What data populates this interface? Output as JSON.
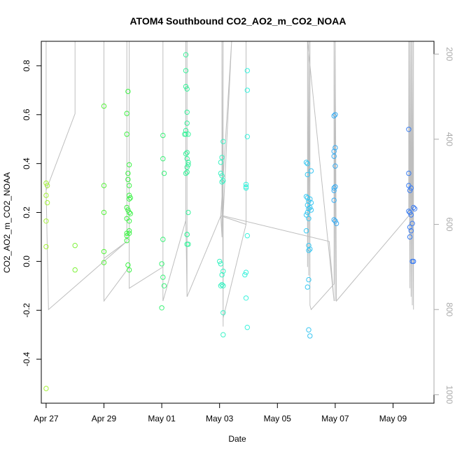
{
  "chart_data": {
    "type": "scatter",
    "title": "ATOM4 Southbound CO2_AO2_m_CO2_NOAA",
    "xlabel": "Date",
    "ylabel": "CO2_AO2_m_CO2_NOAA",
    "xlim": [
      "2016-04-26T20:00",
      "2016-05-10T10:00"
    ],
    "ylim": [
      -0.58,
      0.9
    ],
    "y2lim": [
      1020,
      170
    ],
    "x_ticks": [
      {
        "date": "2016-04-27",
        "label": "Apr 27"
      },
      {
        "date": "2016-04-29",
        "label": "Apr 29"
      },
      {
        "date": "2016-05-01",
        "label": "May 01"
      },
      {
        "date": "2016-05-03",
        "label": "May 03"
      },
      {
        "date": "2016-05-05",
        "label": "May 05"
      },
      {
        "date": "2016-05-07",
        "label": "May 07"
      },
      {
        "date": "2016-05-09",
        "label": "May 09"
      }
    ],
    "y_ticks": [
      -0.4,
      -0.2,
      0.0,
      0.2,
      0.4,
      0.6,
      0.8
    ],
    "y_tick_labels": [
      "-0.4",
      "-0.2",
      "0.0",
      "0.2",
      "0.4",
      "0.6",
      "0.8"
    ],
    "y2_ticks": [
      200,
      400,
      600,
      800,
      1000
    ],
    "y2_tick_labels": [
      "200",
      "400",
      "600",
      "800",
      "1000"
    ],
    "grid": false,
    "legend": "none",
    "colors": {
      "altitude_line": "#bebebe",
      "axis": "#000000",
      "right_axis": "#aaaaaa",
      "point_gradient": [
        "#a6f23a",
        "#3ff23a",
        "#3af2a6",
        "#3af2f2",
        "#3aa6f2",
        "#3a7af2"
      ]
    },
    "points": [
      {
        "x": "2016-04-27T00:00",
        "y": 0.32
      },
      {
        "x": "2016-04-27T00:00",
        "y": 0.27
      },
      {
        "x": "2016-04-27T01:00",
        "y": 0.31
      },
      {
        "x": "2016-04-27T00:00",
        "y": 0.165
      },
      {
        "x": "2016-04-27T01:00",
        "y": 0.24
      },
      {
        "x": "2016-04-27T00:00",
        "y": 0.06
      },
      {
        "x": "2016-04-27T00:00",
        "y": -0.52
      },
      {
        "x": "2016-04-28T00:00",
        "y": 0.065
      },
      {
        "x": "2016-04-28T00:00",
        "y": -0.035
      },
      {
        "x": "2016-04-29T00:00",
        "y": 0.635
      },
      {
        "x": "2016-04-29T00:00",
        "y": 0.31
      },
      {
        "x": "2016-04-29T00:00",
        "y": 0.2
      },
      {
        "x": "2016-04-29T00:00",
        "y": 0.04
      },
      {
        "x": "2016-04-29T00:00",
        "y": -0.005
      },
      {
        "x": "2016-04-29T20:00",
        "y": 0.695
      },
      {
        "x": "2016-04-29T19:00",
        "y": 0.605
      },
      {
        "x": "2016-04-29T19:00",
        "y": 0.52
      },
      {
        "x": "2016-04-29T21:00",
        "y": 0.395
      },
      {
        "x": "2016-04-29T20:00",
        "y": 0.36
      },
      {
        "x": "2016-04-29T20:00",
        "y": 0.335
      },
      {
        "x": "2016-04-29T21:00",
        "y": 0.31
      },
      {
        "x": "2016-04-29T21:00",
        "y": 0.27
      },
      {
        "x": "2016-04-29T22:00",
        "y": 0.26
      },
      {
        "x": "2016-04-29T21:00",
        "y": 0.255
      },
      {
        "x": "2016-04-29T19:00",
        "y": 0.22
      },
      {
        "x": "2016-04-29T20:00",
        "y": 0.21
      },
      {
        "x": "2016-04-29T21:00",
        "y": 0.2
      },
      {
        "x": "2016-04-29T22:00",
        "y": 0.195
      },
      {
        "x": "2016-04-29T19:00",
        "y": 0.175
      },
      {
        "x": "2016-04-29T21:00",
        "y": 0.165
      },
      {
        "x": "2016-04-29T21:00",
        "y": 0.125
      },
      {
        "x": "2016-04-29T21:00",
        "y": 0.115
      },
      {
        "x": "2016-04-29T19:00",
        "y": 0.115
      },
      {
        "x": "2016-04-29T19:00",
        "y": 0.105
      },
      {
        "x": "2016-04-29T19:00",
        "y": 0.085
      },
      {
        "x": "2016-04-29T20:00",
        "y": -0.015
      },
      {
        "x": "2016-04-29T21:00",
        "y": -0.035
      },
      {
        "x": "2016-05-01T01:00",
        "y": 0.515
      },
      {
        "x": "2016-05-01T01:00",
        "y": 0.42
      },
      {
        "x": "2016-05-01T02:00",
        "y": 0.36
      },
      {
        "x": "2016-05-01T01:00",
        "y": 0.09
      },
      {
        "x": "2016-05-01T00:00",
        "y": -0.01
      },
      {
        "x": "2016-05-01T01:00",
        "y": -0.065
      },
      {
        "x": "2016-05-01T02:00",
        "y": -0.1
      },
      {
        "x": "2016-05-01T00:00",
        "y": -0.19
      },
      {
        "x": "2016-05-01T20:00",
        "y": 0.845
      },
      {
        "x": "2016-05-01T20:00",
        "y": 0.78
      },
      {
        "x": "2016-05-01T20:00",
        "y": 0.715
      },
      {
        "x": "2016-05-01T21:00",
        "y": 0.705
      },
      {
        "x": "2016-05-01T21:00",
        "y": 0.61
      },
      {
        "x": "2016-05-01T21:00",
        "y": 0.565
      },
      {
        "x": "2016-05-01T20:00",
        "y": 0.535
      },
      {
        "x": "2016-05-01T19:00",
        "y": 0.52
      },
      {
        "x": "2016-05-01T20:00",
        "y": 0.52
      },
      {
        "x": "2016-05-01T22:00",
        "y": 0.52
      },
      {
        "x": "2016-05-01T20:00",
        "y": 0.44
      },
      {
        "x": "2016-05-01T21:00",
        "y": 0.445
      },
      {
        "x": "2016-05-01T21:00",
        "y": 0.42
      },
      {
        "x": "2016-05-01T22:00",
        "y": 0.405
      },
      {
        "x": "2016-05-01T22:00",
        "y": 0.395
      },
      {
        "x": "2016-05-01T21:00",
        "y": 0.385
      },
      {
        "x": "2016-05-01T21:00",
        "y": 0.365
      },
      {
        "x": "2016-05-01T20:00",
        "y": 0.36
      },
      {
        "x": "2016-05-01T22:00",
        "y": 0.2
      },
      {
        "x": "2016-05-01T21:00",
        "y": 0.11
      },
      {
        "x": "2016-05-01T21:00",
        "y": 0.11
      },
      {
        "x": "2016-05-01T21:00",
        "y": 0.07
      },
      {
        "x": "2016-05-01T22:00",
        "y": 0.07
      },
      {
        "x": "2016-05-03T03:00",
        "y": 0.49
      },
      {
        "x": "2016-05-03T02:00",
        "y": 0.425
      },
      {
        "x": "2016-05-03T01:00",
        "y": 0.405
      },
      {
        "x": "2016-05-03T01:00",
        "y": 0.36
      },
      {
        "x": "2016-05-03T02:00",
        "y": 0.35
      },
      {
        "x": "2016-05-03T03:00",
        "y": 0.33
      },
      {
        "x": "2016-05-03T02:00",
        "y": 0.325
      },
      {
        "x": "2016-05-03T00:00",
        "y": 0.0
      },
      {
        "x": "2016-05-03T01:00",
        "y": -0.01
      },
      {
        "x": "2016-05-03T03:00",
        "y": -0.04
      },
      {
        "x": "2016-05-03T02:00",
        "y": -0.055
      },
      {
        "x": "2016-05-03T02:00",
        "y": -0.095
      },
      {
        "x": "2016-05-03T01:00",
        "y": -0.1
      },
      {
        "x": "2016-05-03T03:00",
        "y": -0.1
      },
      {
        "x": "2016-05-03T03:00",
        "y": -0.21
      },
      {
        "x": "2016-05-03T03:00",
        "y": -0.3
      },
      {
        "x": "2016-05-03T23:00",
        "y": 0.78
      },
      {
        "x": "2016-05-03T23:00",
        "y": 0.7
      },
      {
        "x": "2016-05-03T23:00",
        "y": 0.51
      },
      {
        "x": "2016-05-03T22:00",
        "y": 0.315
      },
      {
        "x": "2016-05-03T22:00",
        "y": 0.305
      },
      {
        "x": "2016-05-03T22:00",
        "y": 0.3
      },
      {
        "x": "2016-05-03T23:00",
        "y": 0.105
      },
      {
        "x": "2016-05-03T22:00",
        "y": -0.045
      },
      {
        "x": "2016-05-03T21:00",
        "y": -0.055
      },
      {
        "x": "2016-05-03T22:00",
        "y": -0.15
      },
      {
        "x": "2016-05-03T23:00",
        "y": -0.27
      },
      {
        "x": "2016-05-06T00:00",
        "y": 0.405
      },
      {
        "x": "2016-05-06T01:00",
        "y": 0.4
      },
      {
        "x": "2016-05-06T04:00",
        "y": 0.37
      },
      {
        "x": "2016-05-06T01:00",
        "y": 0.355
      },
      {
        "x": "2016-05-06T00:00",
        "y": 0.265
      },
      {
        "x": "2016-05-06T01:00",
        "y": 0.26
      },
      {
        "x": "2016-05-06T03:00",
        "y": 0.255
      },
      {
        "x": "2016-05-06T02:00",
        "y": 0.245
      },
      {
        "x": "2016-05-06T04:00",
        "y": 0.24
      },
      {
        "x": "2016-05-06T01:00",
        "y": 0.23
      },
      {
        "x": "2016-05-06T03:00",
        "y": 0.22
      },
      {
        "x": "2016-05-06T02:00",
        "y": 0.215
      },
      {
        "x": "2016-05-06T04:00",
        "y": 0.21
      },
      {
        "x": "2016-05-06T01:00",
        "y": 0.2
      },
      {
        "x": "2016-05-06T00:00",
        "y": 0.19
      },
      {
        "x": "2016-05-06T02:00",
        "y": 0.175
      },
      {
        "x": "2016-05-06T00:00",
        "y": 0.125
      },
      {
        "x": "2016-05-06T02:00",
        "y": 0.065
      },
      {
        "x": "2016-05-06T03:00",
        "y": 0.05
      },
      {
        "x": "2016-05-06T02:00",
        "y": 0.045
      },
      {
        "x": "2016-05-06T02:00",
        "y": -0.075
      },
      {
        "x": "2016-05-06T01:00",
        "y": -0.105
      },
      {
        "x": "2016-05-06T02:00",
        "y": -0.28
      },
      {
        "x": "2016-05-06T03:00",
        "y": -0.305
      },
      {
        "x": "2016-05-06T23:00",
        "y": 0.595
      },
      {
        "x": "2016-05-07T00:00",
        "y": 0.6
      },
      {
        "x": "2016-05-07T00:00",
        "y": 0.465
      },
      {
        "x": "2016-05-06T23:00",
        "y": 0.45
      },
      {
        "x": "2016-05-06T23:00",
        "y": 0.43
      },
      {
        "x": "2016-05-07T00:00",
        "y": 0.39
      },
      {
        "x": "2016-05-07T00:00",
        "y": 0.305
      },
      {
        "x": "2016-05-06T23:00",
        "y": 0.3
      },
      {
        "x": "2016-05-06T23:00",
        "y": 0.29
      },
      {
        "x": "2016-05-06T23:00",
        "y": 0.25
      },
      {
        "x": "2016-05-06T23:00",
        "y": 0.17
      },
      {
        "x": "2016-05-07T00:00",
        "y": 0.165
      },
      {
        "x": "2016-05-07T01:00",
        "y": 0.155
      },
      {
        "x": "2016-05-09T13:00",
        "y": 0.54
      },
      {
        "x": "2016-05-09T13:00",
        "y": 0.36
      },
      {
        "x": "2016-05-09T13:00",
        "y": 0.31
      },
      {
        "x": "2016-05-09T15:00",
        "y": 0.3
      },
      {
        "x": "2016-05-09T14:00",
        "y": 0.29
      },
      {
        "x": "2016-05-09T17:00",
        "y": 0.22
      },
      {
        "x": "2016-05-09T18:00",
        "y": 0.215
      },
      {
        "x": "2016-05-09T14:00",
        "y": 0.2
      },
      {
        "x": "2016-05-09T13:00",
        "y": 0.205
      },
      {
        "x": "2016-05-09T15:00",
        "y": 0.19
      },
      {
        "x": "2016-05-09T16:00",
        "y": 0.155
      },
      {
        "x": "2016-05-09T14:00",
        "y": 0.14
      },
      {
        "x": "2016-05-09T15:00",
        "y": 0.125
      },
      {
        "x": "2016-05-09T14:00",
        "y": 0.1
      },
      {
        "x": "2016-05-09T16:00",
        "y": 0.0
      },
      {
        "x": "2016-05-09T17:00",
        "y": 0.0
      }
    ],
    "altitude_path": [
      [
        "2016-04-27T00:00",
        170
      ],
      [
        "2016-04-27T00:00",
        520
      ],
      [
        "2016-04-28T00:00",
        340
      ],
      [
        "2016-04-28T00:00",
        170
      ],
      [
        "2016-04-28T00:00",
        340
      ],
      [
        "2016-04-27T00:00",
        520
      ],
      [
        "2016-04-27T02:00",
        800
      ],
      [
        "2016-04-27T02:00",
        800
      ],
      [
        "2016-04-29T19:00",
        640
      ],
      [
        "2016-04-29T19:00",
        170
      ],
      [
        "2016-04-29T19:00",
        640
      ],
      [
        "2016-04-29T00:00",
        680
      ],
      [
        "2016-04-29T00:00",
        170
      ],
      [
        "2016-04-29T00:00",
        780
      ],
      [
        "2016-04-29T21:00",
        700
      ],
      [
        "2016-04-29T21:00",
        170
      ],
      [
        "2016-04-29T21:00",
        750
      ],
      [
        "2016-05-01T01:00",
        700
      ],
      [
        "2016-05-01T01:00",
        170
      ],
      [
        "2016-05-01T01:00",
        780
      ],
      [
        "2016-05-01T20:00",
        590
      ],
      [
        "2016-05-01T20:00",
        170
      ],
      [
        "2016-05-01T20:00",
        590
      ],
      [
        "2016-05-01T21:00",
        770
      ],
      [
        "2016-05-01T21:00",
        170
      ],
      [
        "2016-05-01T21:00",
        770
      ],
      [
        "2016-05-03T01:00",
        580
      ],
      [
        "2016-05-03T02:00",
        630
      ],
      [
        "2016-05-03T02:00",
        170
      ],
      [
        "2016-05-03T03:00",
        840
      ],
      [
        "2016-05-03T03:00",
        170
      ],
      [
        "2016-05-03T03:00",
        820
      ],
      [
        "2016-05-03T22:00",
        600
      ],
      [
        "2016-05-03T22:00",
        170
      ],
      [
        "2016-05-03T22:00",
        600
      ],
      [
        "2016-05-03T01:00",
        580
      ],
      [
        "2016-05-03T10:00",
        170
      ],
      [
        "2016-05-03T03:00",
        580
      ],
      [
        "2016-05-06T19:00",
        640
      ],
      [
        "2016-05-06T23:00",
        780
      ],
      [
        "2016-05-06T01:00",
        170
      ],
      [
        "2016-05-06T01:00",
        700
      ],
      [
        "2016-05-06T02:00",
        170
      ],
      [
        "2016-05-06T02:00",
        720
      ],
      [
        "2016-05-06T03:00",
        170
      ],
      [
        "2016-05-06T03:00",
        790
      ],
      [
        "2016-05-06T04:00",
        800
      ],
      [
        "2016-05-06T23:00",
        740
      ],
      [
        "2016-05-06T23:00",
        170
      ],
      [
        "2016-05-07T00:00",
        780
      ],
      [
        "2016-05-07T00:00",
        170
      ],
      [
        "2016-05-07T01:00",
        780
      ],
      [
        "2016-05-09T13:00",
        580
      ],
      [
        "2016-05-09T13:00",
        170
      ],
      [
        "2016-05-09T14:00",
        750
      ],
      [
        "2016-05-09T14:00",
        170
      ],
      [
        "2016-05-09T15:00",
        770
      ],
      [
        "2016-05-09T15:00",
        170
      ],
      [
        "2016-05-09T16:00",
        790
      ],
      [
        "2016-05-09T16:00",
        170
      ],
      [
        "2016-05-09T17:00",
        800
      ],
      [
        "2016-05-09T17:00",
        170
      ]
    ]
  }
}
